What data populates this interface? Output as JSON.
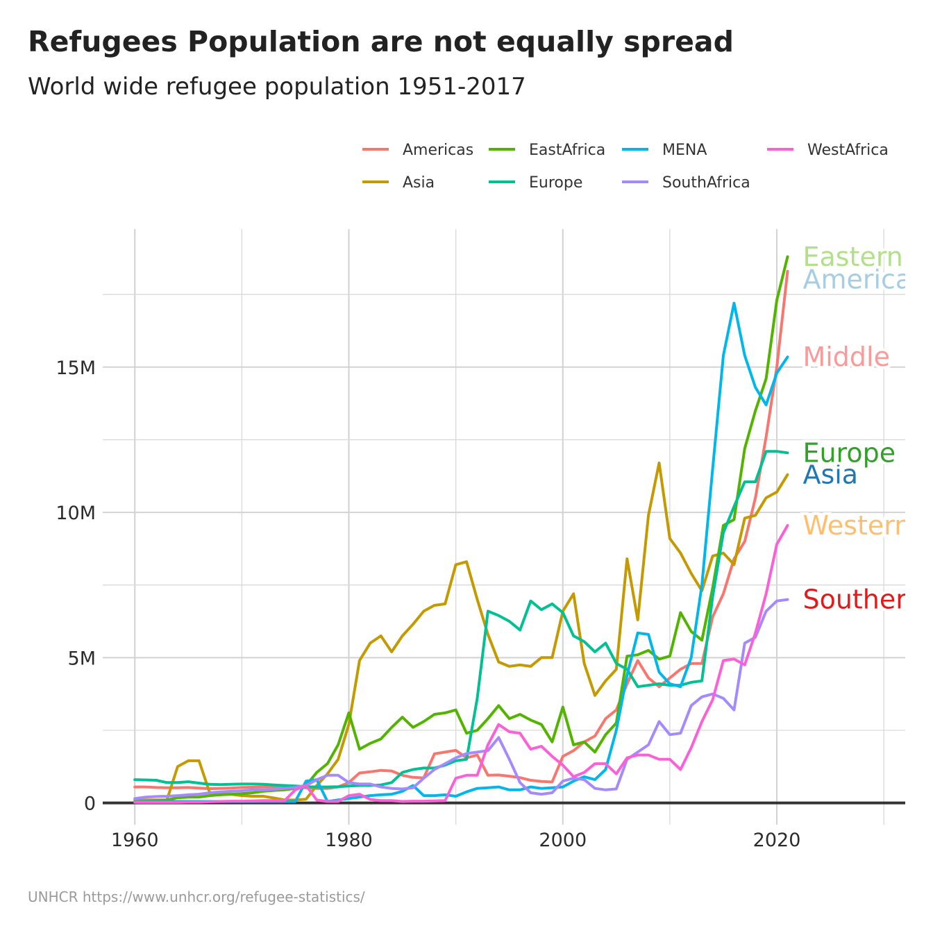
{
  "title": "Refugees Population are not equally spread",
  "subtitle": "World wide refugee population 1951-2017",
  "caption": "UNHCR https://www.unhcr.org/refugee-statistics/",
  "chart_data": {
    "type": "line",
    "xlim": [
      1957,
      2032
    ],
    "ylim": [
      -750000,
      19750000
    ],
    "x_ticks": [
      1960,
      1980,
      2000,
      2020
    ],
    "x_tick_labels": [
      "1960",
      "1980",
      "2000",
      "2020"
    ],
    "y_ticks": [
      0,
      5000000,
      10000000,
      15000000
    ],
    "y_tick_labels": [
      "0",
      "5M",
      "10M",
      "15M"
    ],
    "grid": true,
    "legend_position": "top",
    "x": [
      1960,
      1961,
      1962,
      1963,
      1964,
      1965,
      1966,
      1967,
      1968,
      1969,
      1970,
      1971,
      1972,
      1973,
      1974,
      1975,
      1976,
      1977,
      1978,
      1979,
      1980,
      1981,
      1982,
      1983,
      1984,
      1985,
      1986,
      1987,
      1988,
      1989,
      1990,
      1991,
      1992,
      1993,
      1994,
      1995,
      1996,
      1997,
      1998,
      1999,
      2000,
      2001,
      2002,
      2003,
      2004,
      2005,
      2006,
      2007,
      2008,
      2009,
      2010,
      2011,
      2012,
      2013,
      2014,
      2015,
      2016,
      2017,
      2018,
      2019,
      2020,
      2021
    ],
    "series": [
      {
        "name": "Americas",
        "color": "#F8766D",
        "values": [
          550000,
          550000,
          530000,
          520000,
          520000,
          530000,
          510000,
          490000,
          500000,
          510000,
          530000,
          540000,
          550000,
          560000,
          560000,
          540000,
          520000,
          500000,
          500000,
          550000,
          700000,
          1030000,
          1070000,
          1120000,
          1100000,
          950000,
          880000,
          860000,
          1690000,
          1750000,
          1810000,
          1550000,
          1650000,
          950000,
          960000,
          920000,
          870000,
          780000,
          740000,
          720000,
          1600000,
          1800000,
          2100000,
          2300000,
          2900000,
          3200000,
          4100000,
          4900000,
          4300000,
          4000000,
          4300000,
          4600000,
          4800000,
          4800000,
          6400000,
          7200000,
          8400000,
          9000000,
          10500000,
          12600000,
          15000000,
          18300000
        ]
      },
      {
        "name": "Asia",
        "color": "#C49A00",
        "values": [
          100000,
          100000,
          100000,
          100000,
          1250000,
          1450000,
          1450000,
          350000,
          300000,
          300000,
          250000,
          230000,
          230000,
          170000,
          100000,
          100000,
          130000,
          600000,
          1000000,
          1500000,
          2700000,
          4900000,
          5500000,
          5750000,
          5200000,
          5750000,
          6150000,
          6600000,
          6800000,
          6850000,
          8200000,
          8300000,
          7000000,
          5800000,
          4850000,
          4700000,
          4750000,
          4700000,
          5000000,
          5000000,
          6600000,
          7200000,
          4800000,
          3700000,
          4200000,
          4600000,
          8400000,
          6300000,
          9900000,
          11700000,
          9100000,
          8600000,
          7900000,
          7300000,
          8500000,
          8600000,
          8200000,
          9800000,
          9900000,
          10500000,
          10700000,
          11300000
        ]
      },
      {
        "name": "EastAfrica",
        "color": "#53B400",
        "values": [
          50000,
          60000,
          80000,
          100000,
          180000,
          200000,
          200000,
          250000,
          280000,
          300000,
          320000,
          350000,
          400000,
          430000,
          450000,
          500000,
          600000,
          1050000,
          1350000,
          2000000,
          3100000,
          1850000,
          2050000,
          2200000,
          2600000,
          2950000,
          2600000,
          2800000,
          3050000,
          3100000,
          3200000,
          2400000,
          2500000,
          2900000,
          3350000,
          2900000,
          3050000,
          2850000,
          2700000,
          2100000,
          3300000,
          2000000,
          2100000,
          1750000,
          2350000,
          2750000,
          5050000,
          5100000,
          5250000,
          4950000,
          5050000,
          6550000,
          5900000,
          5600000,
          7400000,
          9550000,
          9750000,
          12200000,
          13500000,
          14600000,
          17300000,
          18800000
        ]
      },
      {
        "name": "Europe",
        "color": "#00C094",
        "values": [
          800000,
          790000,
          780000,
          700000,
          700000,
          730000,
          680000,
          640000,
          630000,
          640000,
          650000,
          650000,
          640000,
          620000,
          600000,
          580000,
          560000,
          550000,
          550000,
          560000,
          580000,
          600000,
          600000,
          620000,
          700000,
          1050000,
          1150000,
          1200000,
          1200000,
          1300000,
          1450000,
          1500000,
          3600000,
          6600000,
          6450000,
          6250000,
          5950000,
          6950000,
          6650000,
          6850000,
          6550000,
          5750000,
          5550000,
          5200000,
          5500000,
          4800000,
          4600000,
          4000000,
          4050000,
          4100000,
          4050000,
          4050000,
          4150000,
          4200000,
          7100000,
          9300000,
          10200000,
          11050000,
          11050000,
          12100000,
          12100000,
          12050000
        ]
      },
      {
        "name": "MENA",
        "color": "#00B6EB",
        "values": [
          50000,
          50000,
          50000,
          50000,
          50000,
          50000,
          50000,
          50000,
          50000,
          50000,
          50000,
          50000,
          50000,
          50000,
          50000,
          50000,
          750000,
          800000,
          50000,
          100000,
          150000,
          200000,
          250000,
          280000,
          300000,
          400000,
          600000,
          250000,
          250000,
          280000,
          230000,
          380000,
          500000,
          520000,
          550000,
          450000,
          450000,
          550000,
          500000,
          520000,
          550000,
          750000,
          900000,
          800000,
          1150000,
          2500000,
          4400000,
          5850000,
          5800000,
          4500000,
          4100000,
          4000000,
          5000000,
          7500000,
          11500000,
          15400000,
          17200000,
          15400000,
          14300000,
          13700000,
          14800000,
          15350000
        ]
      },
      {
        "name": "SouthAfrica",
        "color": "#A58AFF",
        "values": [
          150000,
          200000,
          220000,
          230000,
          250000,
          280000,
          300000,
          350000,
          380000,
          400000,
          420000,
          450000,
          450000,
          470000,
          500000,
          530000,
          600000,
          800000,
          950000,
          950000,
          700000,
          650000,
          650000,
          550000,
          500000,
          480000,
          520000,
          850000,
          1150000,
          1350000,
          1550000,
          1700000,
          1750000,
          1800000,
          2250000,
          1500000,
          700000,
          350000,
          300000,
          350000,
          750000,
          850000,
          800000,
          500000,
          450000,
          480000,
          1500000,
          1750000,
          2000000,
          2800000,
          2350000,
          2400000,
          3350000,
          3650000,
          3750000,
          3600000,
          3200000,
          5500000,
          5700000,
          6600000,
          6950000,
          7000000
        ]
      },
      {
        "name": "WestAfrica",
        "color": "#FB61D7",
        "values": [
          20000,
          20000,
          20000,
          20000,
          20000,
          30000,
          30000,
          40000,
          50000,
          60000,
          60000,
          70000,
          80000,
          80000,
          80000,
          450000,
          600000,
          100000,
          50000,
          50000,
          250000,
          300000,
          120000,
          80000,
          80000,
          50000,
          60000,
          60000,
          70000,
          80000,
          850000,
          950000,
          950000,
          2000000,
          2700000,
          2450000,
          2400000,
          1850000,
          1950000,
          1600000,
          1300000,
          900000,
          1050000,
          1350000,
          1350000,
          1000000,
          1550000,
          1650000,
          1650000,
          1500000,
          1500000,
          1150000,
          1900000,
          2800000,
          3550000,
          4900000,
          4950000,
          4750000,
          5850000,
          7200000,
          8900000,
          9550000
        ]
      }
    ],
    "end_labels": [
      {
        "text": "Americas",
        "color": "#A6CEE3",
        "value": 18300000
      },
      {
        "text": "Eastern",
        "color": "#B2DF8A",
        "value": 18800000
      },
      {
        "text": "Middle",
        "color": "#FB9A99",
        "value": 15350000
      },
      {
        "text": "Asia",
        "color": "#1F78B4",
        "value": 11300000
      },
      {
        "text": "Europe",
        "color": "#33A02C",
        "value": 12050000
      },
      {
        "text": "Western",
        "color": "#FDBF6F",
        "value": 9550000
      },
      {
        "text": "Southern",
        "color": "#E31A1C",
        "value": 7000000
      }
    ]
  }
}
